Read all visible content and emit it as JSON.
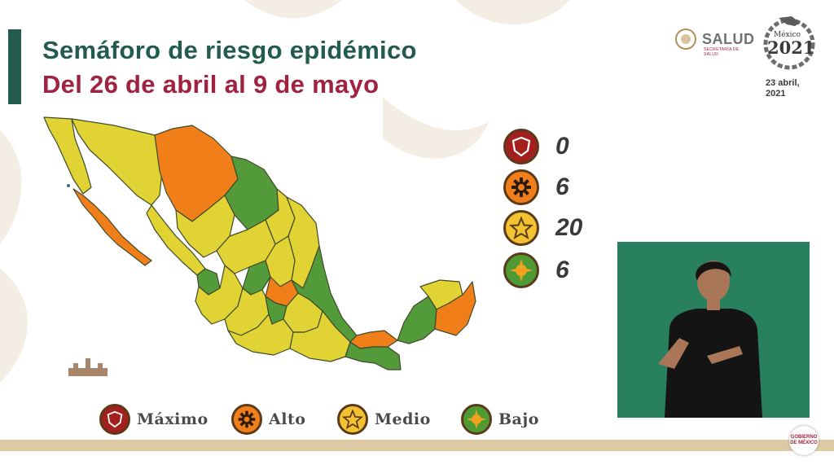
{
  "header": {
    "title": "Semáforo de riesgo epidémico",
    "subtitle": "Del 26 de abril al 9 de mayo"
  },
  "logos": {
    "salud": "SALUD",
    "salud_sub": "SECRETARÍA DE SALUD",
    "year_logo": "2021",
    "year_logo_top": "México",
    "date": "23 abril, 2021",
    "footer_logo": "GOBIERNO DE MÉXICO"
  },
  "legend": {
    "counts": [
      {
        "level": "maximo",
        "count": "0",
        "color": "#a3201f",
        "icon": "shield-icon"
      },
      {
        "level": "alto",
        "count": "6",
        "color": "#f07f19",
        "icon": "gear-icon"
      },
      {
        "level": "medio",
        "count": "20",
        "color": "#f2c230",
        "icon": "star-icon"
      },
      {
        "level": "bajo",
        "count": "6",
        "color": "#4e9a33",
        "icon": "sun-icon"
      }
    ],
    "labels": [
      "Máximo",
      "Alto",
      "Medio",
      "Bajo"
    ]
  },
  "map": {
    "colors": {
      "alto": "#f07f19",
      "medio": "#e1d334",
      "bajo": "#529a3a"
    }
  },
  "video": {
    "background": "#28805f"
  }
}
